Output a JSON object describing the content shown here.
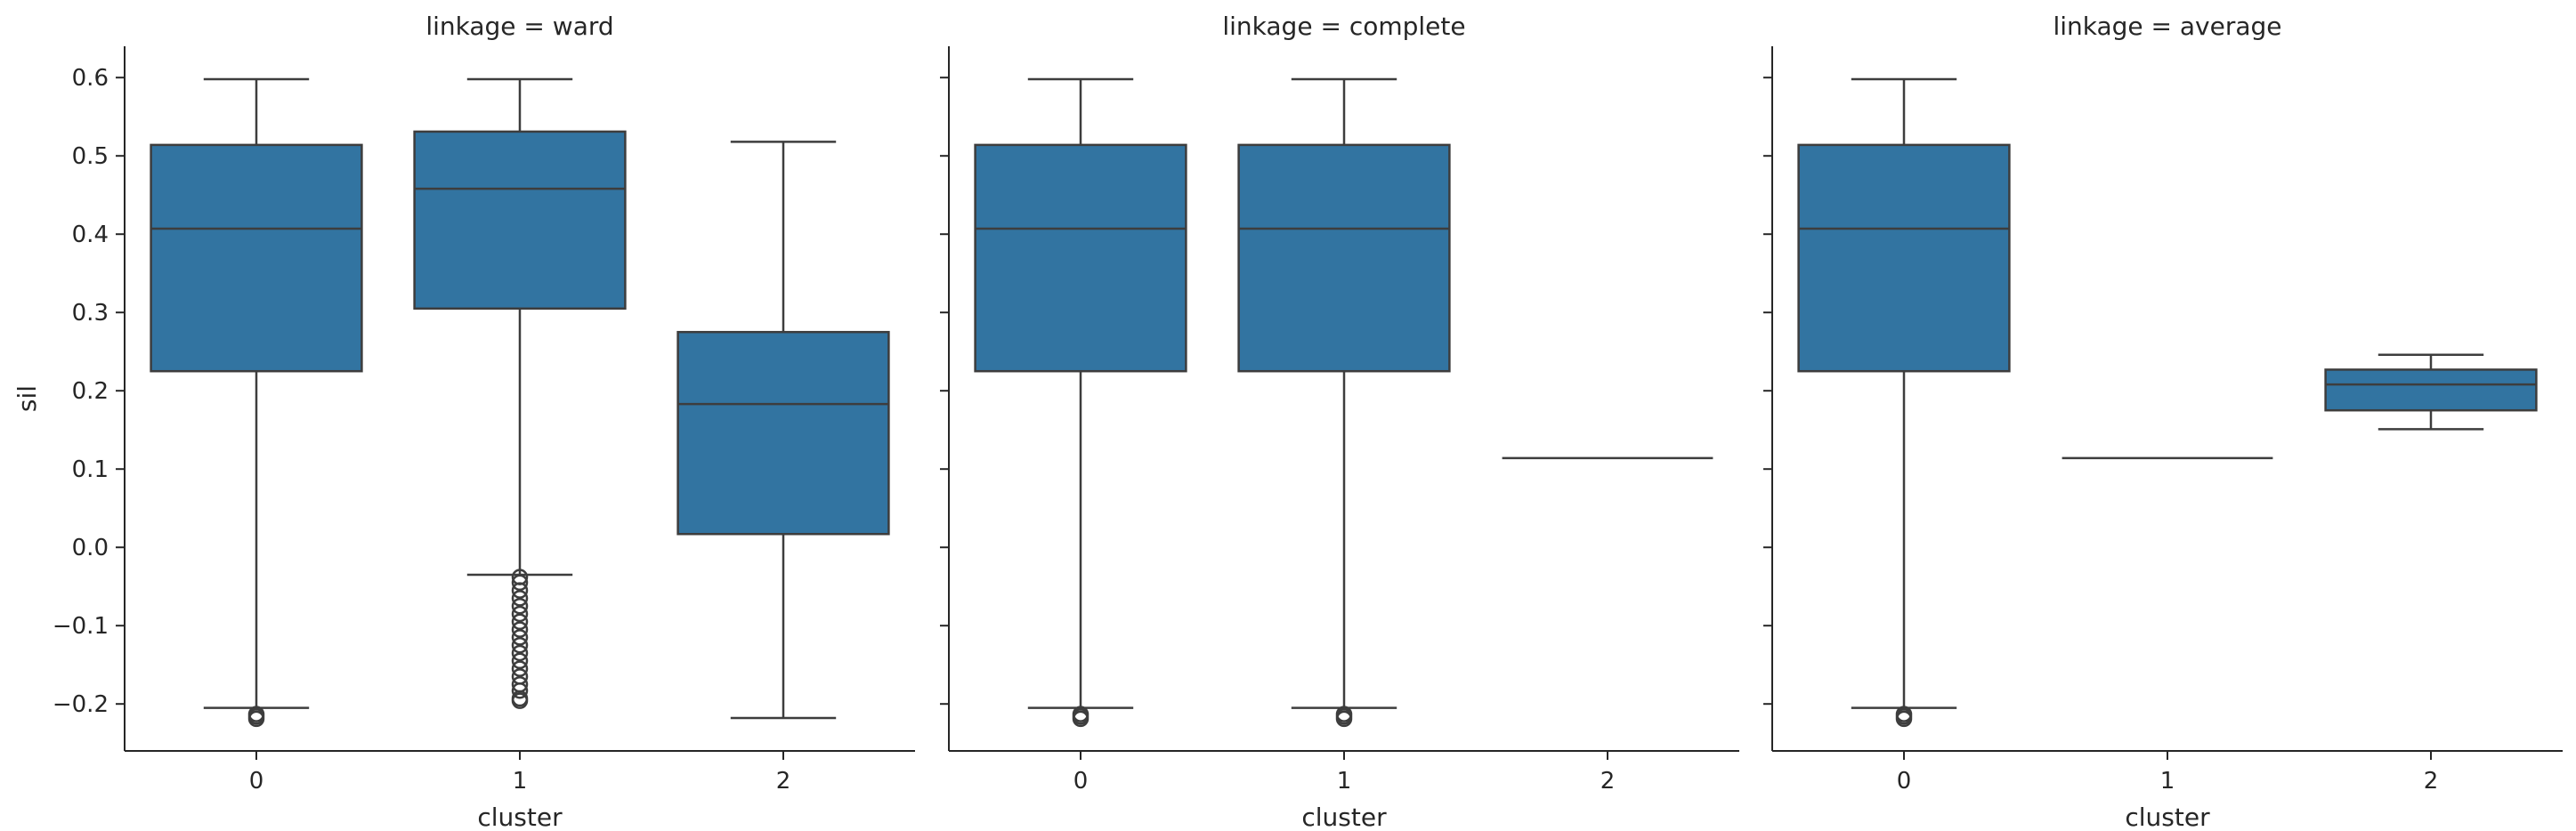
{
  "chart_data": {
    "type": "box",
    "ylabel": "sil",
    "xlabel": "cluster",
    "ylim": [
      -0.26,
      0.64
    ],
    "yticks": [
      -0.2,
      -0.1,
      0.0,
      0.1,
      0.2,
      0.3,
      0.4,
      0.5,
      0.6
    ],
    "ytick_labels": [
      "−0.2",
      "−0.1",
      "0.0",
      "0.1",
      "0.2",
      "0.3",
      "0.4",
      "0.5",
      "0.6"
    ],
    "categories": [
      "0",
      "1",
      "2"
    ],
    "colors": {
      "box_fill": "#3274a1",
      "line": "#3d3d3d",
      "axis": "#262626"
    },
    "grid": false,
    "panels": [
      {
        "title": "linkage = ward",
        "boxes": [
          {
            "category": "0",
            "whislo": -0.205,
            "q1": 0.225,
            "median": 0.407,
            "q3": 0.514,
            "whishi": 0.598,
            "fliers": [
              -0.213,
              -0.216,
              -0.219
            ]
          },
          {
            "category": "1",
            "whislo": -0.035,
            "q1": 0.305,
            "median": 0.458,
            "q3": 0.531,
            "whishi": 0.598,
            "fliers": [
              -0.038,
              -0.045,
              -0.055,
              -0.065,
              -0.075,
              -0.085,
              -0.095,
              -0.105,
              -0.115,
              -0.125,
              -0.135,
              -0.145,
              -0.155,
              -0.165,
              -0.175,
              -0.183,
              -0.193,
              -0.196
            ]
          },
          {
            "category": "2",
            "whislo": -0.218,
            "q1": 0.017,
            "median": 0.183,
            "q3": 0.275,
            "whishi": 0.518,
            "fliers": []
          }
        ]
      },
      {
        "title": "linkage = complete",
        "boxes": [
          {
            "category": "0",
            "whislo": -0.205,
            "q1": 0.225,
            "median": 0.407,
            "q3": 0.514,
            "whishi": 0.598,
            "fliers": [
              -0.213,
              -0.216,
              -0.219
            ]
          },
          {
            "category": "1",
            "whislo": -0.205,
            "q1": 0.225,
            "median": 0.407,
            "q3": 0.514,
            "whishi": 0.598,
            "fliers": [
              -0.213,
              -0.216,
              -0.219
            ]
          },
          {
            "category": "2",
            "whislo": 0.114,
            "q1": 0.114,
            "median": 0.114,
            "q3": 0.114,
            "whishi": 0.114,
            "fliers": []
          }
        ]
      },
      {
        "title": "linkage = average",
        "boxes": [
          {
            "category": "0",
            "whislo": -0.205,
            "q1": 0.225,
            "median": 0.407,
            "q3": 0.514,
            "whishi": 0.598,
            "fliers": [
              -0.213,
              -0.216,
              -0.219
            ]
          },
          {
            "category": "1",
            "whislo": 0.114,
            "q1": 0.114,
            "median": 0.114,
            "q3": 0.114,
            "whishi": 0.114,
            "fliers": []
          },
          {
            "category": "2",
            "whislo": 0.151,
            "q1": 0.175,
            "median": 0.208,
            "q3": 0.227,
            "whishi": 0.246,
            "fliers": []
          }
        ]
      }
    ]
  }
}
